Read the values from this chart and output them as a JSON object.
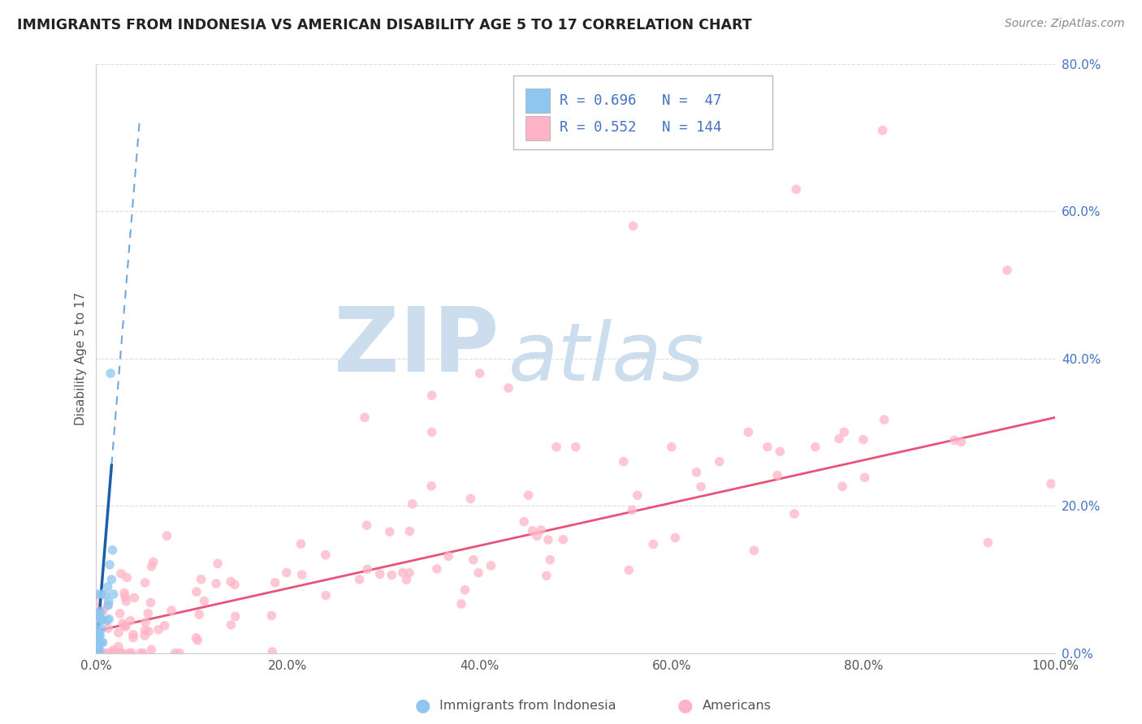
{
  "title": "IMMIGRANTS FROM INDONESIA VS AMERICAN DISABILITY AGE 5 TO 17 CORRELATION CHART",
  "source": "Source: ZipAtlas.com",
  "ylabel": "Disability Age 5 to 17",
  "xlim": [
    0,
    1.0
  ],
  "ylim": [
    0,
    0.8
  ],
  "xtick_vals": [
    0.0,
    0.2,
    0.4,
    0.6,
    0.8,
    1.0
  ],
  "ytick_vals": [
    0.0,
    0.2,
    0.4,
    0.6,
    0.8
  ],
  "xtick_labels": [
    "0.0%",
    "20.0%",
    "40.0%",
    "60.0%",
    "80.0%",
    "100.0%"
  ],
  "ytick_labels": [
    "0.0%",
    "20.0%",
    "40.0%",
    "60.0%",
    "80.0%"
  ],
  "legend_R1": "0.696",
  "legend_N1": "47",
  "legend_R2": "0.552",
  "legend_N2": "144",
  "color_indonesia": "#8EC6F0",
  "color_americans": "#FFB3C6",
  "color_trend_indonesia_solid": "#1C5FA8",
  "color_trend_indonesia_dash": "#6FA8DC",
  "color_trend_americans": "#E8537A",
  "watermark_zip": "ZIP",
  "watermark_atlas": "atlas",
  "watermark_color": "#CCDDED",
  "background_color": "#FFFFFF",
  "grid_color": "#DDDDDD",
  "title_color": "#222222",
  "source_color": "#888888",
  "ylabel_color": "#555555",
  "ytick_color": "#4472C4",
  "xtick_color": "#555555",
  "legend_text_color": "#4472C4",
  "legend_label_color": "#333333"
}
